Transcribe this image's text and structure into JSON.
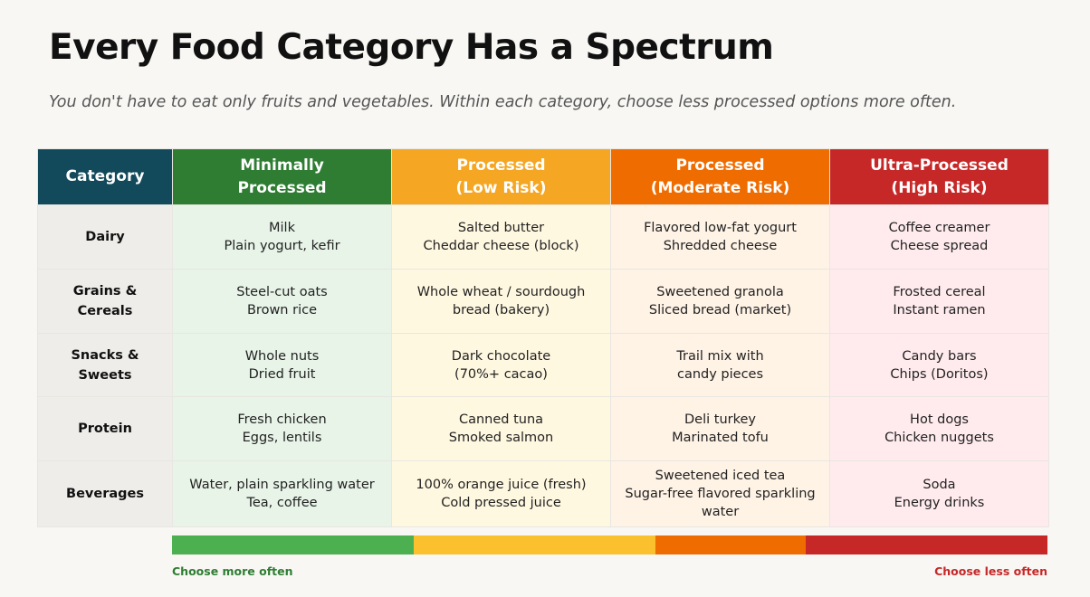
{
  "title": "Every Food Category Has a Spectrum",
  "subtitle": "You don't have to eat only fruits and vegetables.  Within each category, choose less processed options more often.",
  "columns": [
    {
      "label": "Category",
      "header_color": "#124a5c",
      "cell_color": "#efedea"
    },
    {
      "label": "Minimally\nProcessed",
      "header_color": "#2e7d32",
      "cell_color": "#e8f4e8"
    },
    {
      "label": "Processed\n(Low Risk)",
      "header_color": "#f5a623",
      "cell_color": "#fff8e1"
    },
    {
      "label": "Processed\n(Moderate Risk)",
      "header_color": "#ef6c00",
      "cell_color": "#fff3e6"
    },
    {
      "label": "Ultra-Processed\n(High Risk)",
      "header_color": "#c62828",
      "cell_color": "#ffebee"
    }
  ],
  "rows": [
    {
      "category": "Dairy",
      "cells": [
        "Milk\nPlain yogurt, kefir",
        "Salted butter\nCheddar cheese (block)",
        "Flavored low-fat yogurt\nShredded cheese",
        "Coffee creamer\nCheese spread"
      ]
    },
    {
      "category": "Grains &\nCereals",
      "cells": [
        "Steel-cut oats\nBrown rice",
        "Whole wheat / sourdough\nbread (bakery)",
        "Sweetened granola\nSliced bread (market)",
        "Frosted cereal\nInstant ramen"
      ]
    },
    {
      "category": "Snacks &\nSweets",
      "cells": [
        "Whole nuts\nDried fruit",
        "Dark chocolate\n(70%+ cacao)",
        "Trail mix with\ncandy pieces",
        "Candy bars\nChips (Doritos)"
      ]
    },
    {
      "category": "Protein",
      "cells": [
        "Fresh chicken\nEggs, lentils",
        "Canned tuna\nSmoked salmon",
        "Deli turkey\nMarinated tofu",
        "Hot dogs\nChicken nuggets"
      ]
    },
    {
      "category": "Beverages",
      "cells": [
        "Water, plain sparkling water\nTea, coffee",
        "100% orange juice (fresh)\nCold pressed juice",
        "Sweetened iced tea\nSugar-free flavored sparkling\nwater",
        "Soda\nEnergy drinks"
      ]
    }
  ],
  "legend": {
    "more_label": "Choose more often",
    "less_label": "Choose less often",
    "segments": [
      {
        "color": "#4caf50",
        "share": 0.276
      },
      {
        "color": "#fbc02d",
        "share": 0.276
      },
      {
        "color": "#ef6c00",
        "share": 0.172
      },
      {
        "color": "#c62828",
        "share": 0.276
      }
    ]
  }
}
